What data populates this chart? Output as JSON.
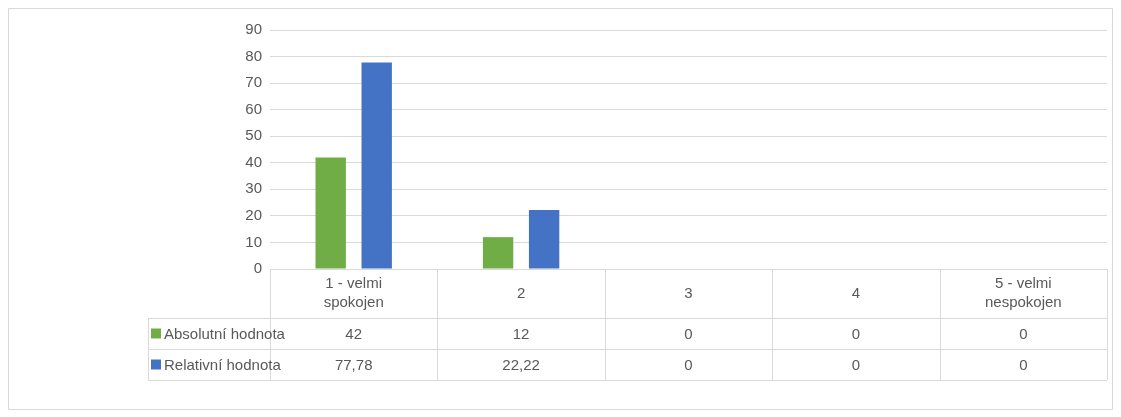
{
  "chart_data": {
    "type": "bar",
    "categories": [
      "1 - velmi spokojen",
      "2",
      "3",
      "4",
      "5 - velmi nespokojen"
    ],
    "series": [
      {
        "name": "Absolutní hodnota",
        "color": "#70ad47",
        "values": [
          42,
          12,
          0,
          0,
          0
        ],
        "value_labels": [
          "42",
          "12",
          "0",
          "0",
          "0"
        ]
      },
      {
        "name": "Relativní hodnota",
        "color": "#4472c4",
        "values": [
          77.78,
          22.22,
          0,
          0,
          0
        ],
        "value_labels": [
          "77,78",
          "22,22",
          "0",
          "0",
          "0"
        ]
      }
    ],
    "ylim": [
      0,
      90
    ],
    "yticks": [
      0,
      10,
      20,
      30,
      40,
      50,
      60,
      70,
      80,
      90
    ],
    "grid": "y",
    "legend": "bottom left"
  }
}
